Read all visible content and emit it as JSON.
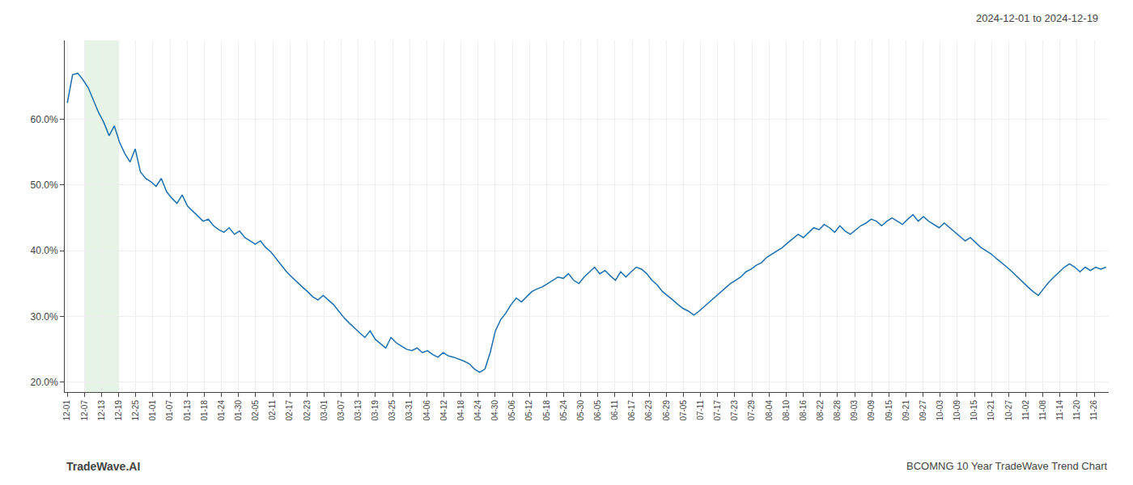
{
  "chart_data": {
    "type": "line",
    "title": "2024-12-01 to 2024-12-19",
    "x": [
      0,
      1,
      2,
      3,
      4,
      5,
      6,
      7,
      8,
      9,
      10,
      11,
      12,
      13,
      14,
      15,
      16,
      17,
      18,
      19,
      20,
      21,
      22,
      23,
      24,
      25,
      26,
      27,
      28,
      29,
      30,
      31,
      32,
      33,
      34,
      35,
      36,
      37,
      38,
      39,
      40,
      41,
      42,
      43,
      44,
      45,
      46,
      47,
      48,
      49,
      50,
      51,
      52,
      53,
      54,
      55,
      56,
      57,
      58,
      59,
      60,
      61,
      62,
      63,
      64,
      65,
      66,
      67,
      68,
      69,
      70,
      71,
      72,
      73,
      74,
      75,
      76,
      77,
      78,
      79,
      80,
      81,
      82,
      83,
      84,
      85,
      86,
      87,
      88,
      89,
      90,
      91,
      92,
      93,
      94,
      95,
      96,
      97,
      98,
      99,
      100,
      101,
      102,
      103,
      104,
      105,
      106,
      107,
      108,
      109,
      110,
      111,
      112,
      113,
      114,
      115,
      116,
      117,
      118,
      119,
      120,
      121,
      122,
      123,
      124,
      125,
      126,
      127,
      128,
      129,
      130,
      131,
      132,
      133,
      134,
      135,
      136,
      137,
      138,
      139,
      140,
      141,
      142,
      143,
      144,
      145,
      146,
      147,
      148,
      149,
      150,
      151,
      152,
      153,
      154,
      155,
      156,
      157,
      158,
      159,
      160,
      161,
      162,
      163,
      164,
      165,
      166,
      167,
      168,
      169,
      170,
      171,
      172,
      173,
      174,
      175,
      176,
      177,
      178,
      179,
      180,
      181,
      182,
      183,
      184,
      185,
      186,
      187,
      188,
      189,
      190,
      191,
      192,
      193,
      194,
      195,
      196,
      197,
      198,
      199
    ],
    "values": [
      0.625,
      0.668,
      0.67,
      0.66,
      0.648,
      0.63,
      0.61,
      0.595,
      0.575,
      0.59,
      0.565,
      0.548,
      0.535,
      0.555,
      0.52,
      0.51,
      0.505,
      0.498,
      0.51,
      0.49,
      0.48,
      0.472,
      0.485,
      0.468,
      0.46,
      0.452,
      0.445,
      0.448,
      0.438,
      0.432,
      0.428,
      0.435,
      0.425,
      0.43,
      0.42,
      0.415,
      0.41,
      0.415,
      0.405,
      0.398,
      0.388,
      0.378,
      0.368,
      0.36,
      0.352,
      0.345,
      0.338,
      0.33,
      0.325,
      0.332,
      0.325,
      0.318,
      0.308,
      0.298,
      0.29,
      0.282,
      0.275,
      0.268,
      0.278,
      0.265,
      0.258,
      0.252,
      0.268,
      0.26,
      0.255,
      0.25,
      0.248,
      0.252,
      0.245,
      0.248,
      0.242,
      0.238,
      0.245,
      0.24,
      0.238,
      0.235,
      0.232,
      0.228,
      0.22,
      0.215,
      0.22,
      0.245,
      0.278,
      0.295,
      0.305,
      0.318,
      0.328,
      0.322,
      0.33,
      0.338,
      0.342,
      0.345,
      0.35,
      0.355,
      0.36,
      0.358,
      0.365,
      0.355,
      0.35,
      0.36,
      0.368,
      0.375,
      0.365,
      0.37,
      0.362,
      0.355,
      0.368,
      0.36,
      0.368,
      0.375,
      0.372,
      0.365,
      0.355,
      0.348,
      0.338,
      0.332,
      0.325,
      0.318,
      0.312,
      0.308,
      0.302,
      0.308,
      0.315,
      0.322,
      0.328,
      0.335,
      0.342,
      0.35,
      0.355,
      0.36,
      0.368,
      0.372,
      0.378,
      0.382,
      0.39,
      0.395,
      0.4,
      0.405,
      0.412,
      0.418,
      0.425,
      0.42,
      0.428,
      0.435,
      0.432,
      0.44,
      0.435,
      0.428,
      0.438,
      0.43,
      0.425,
      0.432,
      0.438,
      0.442,
      0.448,
      0.445,
      0.438,
      0.445,
      0.45,
      0.445,
      0.44,
      0.448,
      0.455,
      0.445,
      0.452,
      0.445,
      0.44,
      0.435,
      0.442,
      0.435,
      0.428,
      0.422,
      0.415,
      0.42,
      0.412,
      0.405,
      0.4,
      0.395,
      0.388,
      0.382,
      0.375,
      0.368,
      0.36,
      0.352,
      0.345,
      0.338,
      0.332,
      0.342,
      0.352,
      0.36,
      0.368,
      0.375,
      0.38,
      0.375,
      0.368,
      0.375,
      0.37,
      0.375,
      0.372,
      0.375
    ],
    "color": "#1a6faf",
    "xlim": [
      -0.5,
      199.5
    ],
    "xticks": [
      {
        "value": 0,
        "label": "12-01"
      },
      {
        "value": 3.2786885246,
        "label": "12-07"
      },
      {
        "value": 6.5573770492,
        "label": "12-13"
      },
      {
        "value": 9.8360655738,
        "label": "12-19"
      },
      {
        "value": 13.1147540984,
        "label": "12-25"
      },
      {
        "value": 16.393442623,
        "label": "01-01"
      },
      {
        "value": 19.6721311475,
        "label": "01-07"
      },
      {
        "value": 22.9508196721,
        "label": "01-13"
      },
      {
        "value": 26.2295081967,
        "label": "01-18"
      },
      {
        "value": 29.5081967213,
        "label": "01-24"
      },
      {
        "value": 32.7868852459,
        "label": "01-30"
      },
      {
        "value": 36.0655737705,
        "label": "02-05"
      },
      {
        "value": 39.3442622951,
        "label": "02-11"
      },
      {
        "value": 42.6229508197,
        "label": "02-17"
      },
      {
        "value": 45.9016393443,
        "label": "02-23"
      },
      {
        "value": 49.1803278689,
        "label": "03-01"
      },
      {
        "value": 52.4590163934,
        "label": "03-07"
      },
      {
        "value": 55.737704918,
        "label": "03-13"
      },
      {
        "value": 59.0163934426,
        "label": "03-19"
      },
      {
        "value": 62.2950819672,
        "label": "03-25"
      },
      {
        "value": 65.5737704918,
        "label": "03-31"
      },
      {
        "value": 68.8524590164,
        "label": "04-06"
      },
      {
        "value": 72.131147541,
        "label": "04-12"
      },
      {
        "value": 75.4098360656,
        "label": "04-18"
      },
      {
        "value": 78.6885245902,
        "label": "04-24"
      },
      {
        "value": 81.9672131148,
        "label": "04-30"
      },
      {
        "value": 85.2459016393,
        "label": "05-06"
      },
      {
        "value": 88.5245901639,
        "label": "05-12"
      },
      {
        "value": 91.8032786885,
        "label": "05-18"
      },
      {
        "value": 95.0819672131,
        "label": "05-24"
      },
      {
        "value": 98.3606557377,
        "label": "05-30"
      },
      {
        "value": 101.6393442623,
        "label": "06-05"
      },
      {
        "value": 104.9180327869,
        "label": "06-11"
      },
      {
        "value": 108.1967213115,
        "label": "06-17"
      },
      {
        "value": 111.4754098361,
        "label": "06-23"
      },
      {
        "value": 114.7540983607,
        "label": "06-29"
      },
      {
        "value": 118.0327868852,
        "label": "07-05"
      },
      {
        "value": 121.3114754098,
        "label": "07-11"
      },
      {
        "value": 124.5901639344,
        "label": "07-17"
      },
      {
        "value": 127.868852459,
        "label": "07-23"
      },
      {
        "value": 131.1475409836,
        "label": "07-29"
      },
      {
        "value": 134.4262295082,
        "label": "08-04"
      },
      {
        "value": 137.7049180328,
        "label": "08-10"
      },
      {
        "value": 140.9836065574,
        "label": "08-16"
      },
      {
        "value": 144.262295082,
        "label": "08-22"
      },
      {
        "value": 147.5409836066,
        "label": "08-28"
      },
      {
        "value": 150.8196721311,
        "label": "09-03"
      },
      {
        "value": 154.0983606557,
        "label": "09-09"
      },
      {
        "value": 157.3770491803,
        "label": "09-15"
      },
      {
        "value": 160.6557377049,
        "label": "09-21"
      },
      {
        "value": 163.9344262295,
        "label": "09-27"
      },
      {
        "value": 167.2131147541,
        "label": "10-03"
      },
      {
        "value": 170.4918032787,
        "label": "10-09"
      },
      {
        "value": 173.7704918033,
        "label": "10-15"
      },
      {
        "value": 177.0491803279,
        "label": "10-21"
      },
      {
        "value": 180.3278688525,
        "label": "10-27"
      },
      {
        "value": 183.606557377,
        "label": "11-02"
      },
      {
        "value": 186.8852459016,
        "label": "11-08"
      },
      {
        "value": 190.1639344262,
        "label": "11-14"
      },
      {
        "value": 193.4426229508,
        "label": "11-20"
      },
      {
        "value": 196.7213114754,
        "label": "11-26"
      }
    ],
    "ylim": [
      0.185,
      0.72
    ],
    "yticks": [
      {
        "value": 0.2,
        "label": "20.0%"
      },
      {
        "value": 0.3,
        "label": "30.0%"
      },
      {
        "value": 0.4,
        "label": "40.0%"
      },
      {
        "value": 0.5,
        "label": "50.0%"
      },
      {
        "value": 0.6,
        "label": "60.0%"
      }
    ],
    "grid": true,
    "highlight": {
      "start": 3.2786885246,
      "end": 9.8360655738,
      "color": "#c8e6c9"
    },
    "annotations": [
      "TradeWave.AI",
      "BCOMNG 10 Year TradeWave Trend Chart"
    ]
  }
}
